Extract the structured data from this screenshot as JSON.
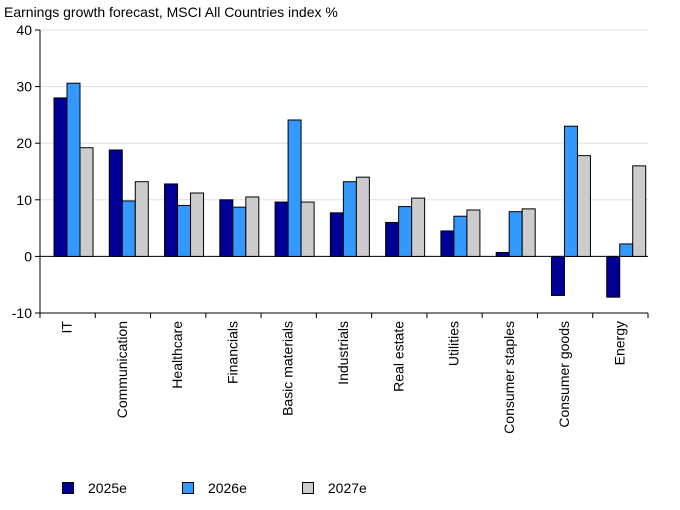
{
  "chart_data": {
    "type": "bar",
    "title": "Earnings growth forecast, MSCI All Countries index %",
    "xlabel": "",
    "ylabel": "",
    "ylim": [
      -10,
      40
    ],
    "yticks": [
      -10,
      0,
      10,
      20,
      30,
      40
    ],
    "grid": true,
    "legend_position": "bottom",
    "categories": [
      "IT",
      "Communication",
      "Healthcare",
      "Financials",
      "Basic materials",
      "Industrials",
      "Real estate",
      "Utilities",
      "Consumer staples",
      "Consumer goods",
      "Energy"
    ],
    "series": [
      {
        "name": "2025e",
        "color": "#000099",
        "values": [
          28.0,
          18.8,
          12.8,
          10.0,
          9.6,
          7.7,
          6.0,
          4.5,
          0.7,
          -6.9,
          -7.2
        ]
      },
      {
        "name": "2026e",
        "color": "#3399ff",
        "values": [
          30.6,
          9.8,
          9.0,
          8.7,
          24.1,
          13.2,
          8.8,
          7.1,
          7.9,
          23.0,
          2.2
        ]
      },
      {
        "name": "2027e",
        "color": "#cccccc",
        "values": [
          19.2,
          13.2,
          11.2,
          10.5,
          9.6,
          14.0,
          10.3,
          8.2,
          8.4,
          17.8,
          16.0
        ]
      }
    ]
  }
}
